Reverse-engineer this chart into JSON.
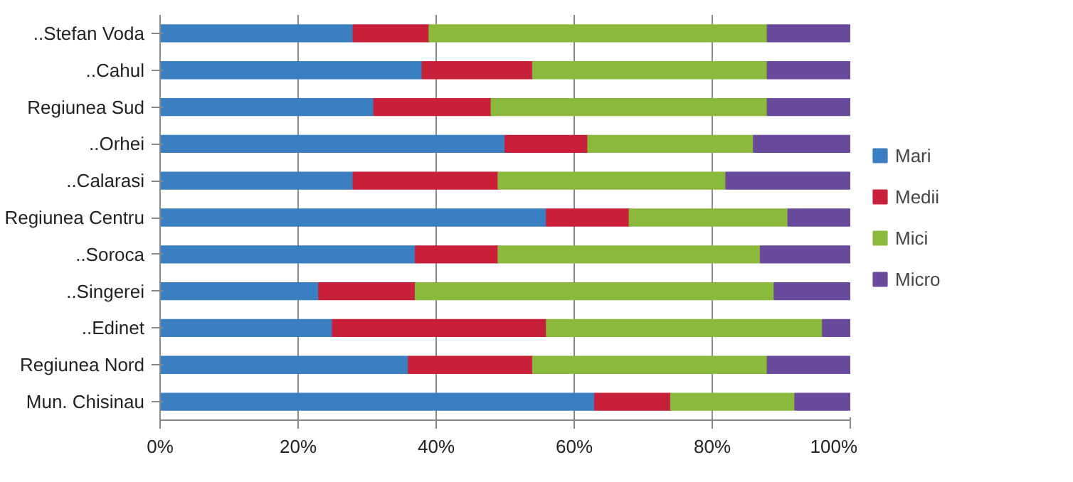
{
  "chart_data": {
    "type": "bar",
    "orientation": "horizontal",
    "stacked": true,
    "categories": [
      "..Stefan Voda",
      "..Cahul",
      "Regiunea Sud",
      "..Orhei",
      "..Calarasi",
      "Regiunea Centru",
      "..Soroca",
      "..Singerei",
      "..Edinet",
      "Regiunea Nord",
      "Mun. Chisinau"
    ],
    "series": [
      {
        "name": "Mari",
        "color": "#3a7fc1",
        "values": [
          28,
          38,
          31,
          50,
          28,
          56,
          37,
          23,
          25,
          36,
          63
        ]
      },
      {
        "name": "Medii",
        "color": "#c8203b",
        "values": [
          11,
          16,
          17,
          12,
          21,
          12,
          12,
          14,
          31,
          18,
          11
        ]
      },
      {
        "name": "Mici",
        "color": "#8ab93c",
        "values": [
          49,
          34,
          40,
          24,
          33,
          23,
          38,
          52,
          40,
          34,
          18
        ]
      },
      {
        "name": "Micro",
        "color": "#6a4a9c",
        "values": [
          12,
          12,
          12,
          14,
          18,
          9,
          13,
          11,
          4,
          12,
          8
        ]
      }
    ],
    "xlim": [
      0,
      100
    ],
    "xticks": [
      {
        "value": 0,
        "label": "0%"
      },
      {
        "value": 20,
        "label": "20%"
      },
      {
        "value": 40,
        "label": "40%"
      },
      {
        "value": 60,
        "label": "60%"
      },
      {
        "value": 80,
        "label": "80%"
      },
      {
        "value": 100,
        "label": "100%"
      }
    ],
    "grid": "x",
    "legend": "right"
  }
}
